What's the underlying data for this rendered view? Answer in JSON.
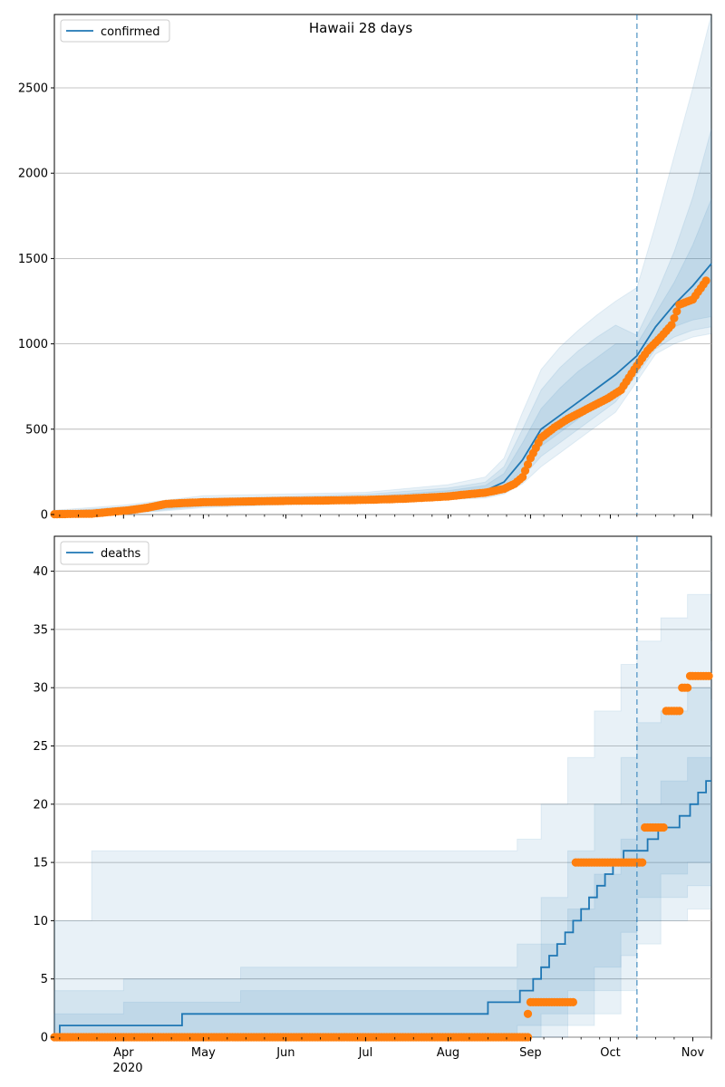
{
  "figure": {
    "title": "Hawaii 28 days"
  },
  "colors": {
    "model_line": "#1f77b4",
    "band": "#1f77b4",
    "observed": "#ff7f0e",
    "grid": "#b0b0b0",
    "vline": "#1f77b4"
  },
  "chart_data": [
    {
      "type": "line",
      "name": "confirmed-panel",
      "x_range": [
        "2020-03-06",
        "2020-11-08"
      ],
      "ylim": [
        0,
        2930
      ],
      "yticks": [
        0,
        500,
        1000,
        1500,
        2000,
        2500
      ],
      "grid": "horizontal",
      "legend_placement": "upper-left",
      "legend": [
        "confirmed"
      ],
      "forecast_start": "2020-10-11",
      "model": {
        "name": "confirmed",
        "x": [
          "2020-03-06",
          "2020-04-01",
          "2020-05-01",
          "2020-06-01",
          "2020-07-01",
          "2020-08-01",
          "2020-08-15",
          "2020-08-22",
          "2020-08-29",
          "2020-09-05",
          "2020-09-12",
          "2020-09-19",
          "2020-09-26",
          "2020-10-03",
          "2020-10-11",
          "2020-10-18",
          "2020-10-25",
          "2020-11-01",
          "2020-11-08"
        ],
        "median": [
          3,
          20,
          70,
          80,
          88,
          118,
          140,
          190,
          320,
          500,
          580,
          660,
          740,
          820,
          930,
          1100,
          1230,
          1340,
          1470
        ],
        "bands": [
          {
            "lo": [
              0,
              10,
              55,
              70,
              78,
              105,
              120,
              160,
              260,
              400,
              480,
              560,
              640,
              720,
              850,
              1020,
              1100,
              1140,
              1160
            ],
            "hi": [
              10,
              35,
              85,
              95,
              105,
              140,
              170,
              240,
              420,
              620,
              740,
              840,
              920,
              1000,
              1000,
              1180,
              1360,
              1580,
              1850
            ]
          },
          {
            "lo": [
              0,
              5,
              48,
              64,
              72,
              96,
              108,
              140,
              220,
              340,
              420,
              500,
              580,
              660,
              820,
              970,
              1040,
              1080,
              1100
            ],
            "hi": [
              18,
              45,
              95,
              105,
              118,
              155,
              190,
              280,
              500,
              730,
              860,
              960,
              1040,
              1110,
              1050,
              1280,
              1540,
              1860,
              2260
            ]
          },
          {
            "lo": [
              0,
              2,
              40,
              58,
              66,
              88,
              96,
              120,
              180,
              280,
              360,
              440,
              520,
              600,
              780,
              940,
              1000,
              1040,
              1060
            ],
            "hi": [
              25,
              55,
              110,
              120,
              130,
              175,
              220,
              330,
              600,
              850,
              980,
              1080,
              1170,
              1250,
              1330,
              1700,
              2100,
              2500,
              2930
            ]
          }
        ]
      },
      "observed": {
        "x": [
          "2020-03-06",
          "2020-03-20",
          "2020-03-27",
          "2020-04-03",
          "2020-04-10",
          "2020-04-17",
          "2020-04-24",
          "2020-05-01",
          "2020-05-15",
          "2020-06-01",
          "2020-06-15",
          "2020-07-01",
          "2020-07-15",
          "2020-08-01",
          "2020-08-08",
          "2020-08-15",
          "2020-08-22",
          "2020-08-26",
          "2020-08-29",
          "2020-09-01",
          "2020-09-05",
          "2020-09-10",
          "2020-09-15",
          "2020-09-20",
          "2020-09-25",
          "2020-09-30",
          "2020-10-05",
          "2020-10-10",
          "2020-10-15",
          "2020-10-20",
          "2020-10-24",
          "2020-10-27",
          "2020-11-01",
          "2020-11-06"
        ],
        "y": [
          2,
          5,
          15,
          25,
          40,
          62,
          68,
          72,
          76,
          80,
          82,
          86,
          92,
          106,
          118,
          128,
          150,
          180,
          220,
          330,
          450,
          510,
          560,
          600,
          640,
          680,
          730,
          850,
          960,
          1040,
          1110,
          1230,
          1260,
          1370
        ]
      }
    },
    {
      "type": "line",
      "name": "deaths-panel",
      "x_range": [
        "2020-03-06",
        "2020-11-08"
      ],
      "ylim": [
        0,
        43
      ],
      "yticks": [
        0,
        5,
        10,
        15,
        20,
        25,
        30,
        35,
        40
      ],
      "xtick_labels": [
        "Apr",
        "May",
        "Jun",
        "Jul",
        "Aug",
        "Sep",
        "Oct",
        "Nov"
      ],
      "xtick_dates": [
        "2020-04-01",
        "2020-05-01",
        "2020-06-01",
        "2020-07-01",
        "2020-08-01",
        "2020-09-01",
        "2020-10-01",
        "2020-11-01"
      ],
      "year_label": "2020",
      "grid": "horizontal",
      "legend_placement": "upper-left",
      "legend": [
        "deaths"
      ],
      "forecast_start": "2020-10-11",
      "model": {
        "name": "deaths",
        "x": [
          "2020-03-06",
          "2020-03-08",
          "2020-04-22",
          "2020-04-23",
          "2020-08-15",
          "2020-08-16",
          "2020-08-27",
          "2020-08-28",
          "2020-09-02",
          "2020-09-05",
          "2020-09-08",
          "2020-09-11",
          "2020-09-14",
          "2020-09-17",
          "2020-09-20",
          "2020-09-23",
          "2020-09-26",
          "2020-09-29",
          "2020-10-02",
          "2020-10-06",
          "2020-10-11",
          "2020-10-15",
          "2020-10-19",
          "2020-10-23",
          "2020-10-27",
          "2020-10-31",
          "2020-11-03",
          "2020-11-06",
          "2020-11-08"
        ],
        "median": [
          0,
          1,
          1,
          2,
          2,
          3,
          3,
          4,
          5,
          6,
          7,
          8,
          9,
          10,
          11,
          12,
          13,
          14,
          15,
          16,
          16,
          17,
          18,
          18,
          19,
          20,
          21,
          22,
          22
        ]
      },
      "bands_stepped": [
        {
          "x": [
            "2020-03-06",
            "2020-04-01",
            "2020-05-15",
            "2020-08-15",
            "2020-08-27",
            "2020-09-05",
            "2020-09-15",
            "2020-09-25",
            "2020-10-05",
            "2020-10-11",
            "2020-10-20",
            "2020-10-30",
            "2020-11-08"
          ],
          "lo": [
            0,
            0,
            0,
            0,
            1,
            2,
            4,
            6,
            9,
            12,
            14,
            15,
            16
          ],
          "hi": [
            2,
            3,
            4,
            4,
            5,
            8,
            11,
            14,
            17,
            20,
            22,
            24,
            29
          ]
        },
        {
          "x": [
            "2020-03-06",
            "2020-04-01",
            "2020-05-15",
            "2020-08-15",
            "2020-08-27",
            "2020-09-05",
            "2020-09-15",
            "2020-09-25",
            "2020-10-05",
            "2020-10-11",
            "2020-10-20",
            "2020-10-30",
            "2020-11-08"
          ],
          "lo": [
            0,
            0,
            0,
            0,
            0,
            1,
            2,
            4,
            7,
            10,
            12,
            13,
            13
          ],
          "hi": [
            4,
            5,
            6,
            6,
            8,
            12,
            16,
            20,
            24,
            27,
            28,
            30,
            34
          ]
        },
        {
          "x": [
            "2020-03-06",
            "2020-03-20",
            "2020-06-15",
            "2020-08-15",
            "2020-08-27",
            "2020-09-05",
            "2020-09-15",
            "2020-09-25",
            "2020-10-05",
            "2020-10-11",
            "2020-10-20",
            "2020-10-30",
            "2020-11-08"
          ],
          "lo": [
            0,
            0,
            0,
            0,
            0,
            0,
            1,
            2,
            4,
            8,
            10,
            11,
            11
          ],
          "hi": [
            10,
            16,
            16,
            16,
            17,
            20,
            24,
            28,
            32,
            34,
            36,
            38,
            43
          ]
        }
      ],
      "observed": {
        "segments": [
          {
            "from": "2020-03-06",
            "to": "2020-08-31",
            "y": 0
          },
          {
            "from": "2020-08-31",
            "to": "2020-08-31",
            "y": 2
          },
          {
            "from": "2020-09-01",
            "to": "2020-09-17",
            "y": 3
          },
          {
            "from": "2020-09-18",
            "to": "2020-10-13",
            "y": 15
          },
          {
            "from": "2020-10-14",
            "to": "2020-10-21",
            "y": 18
          },
          {
            "from": "2020-10-22",
            "to": "2020-10-27",
            "y": 28
          },
          {
            "from": "2020-10-28",
            "to": "2020-10-30",
            "y": 30
          },
          {
            "from": "2020-10-31",
            "to": "2020-11-07",
            "y": 31
          }
        ]
      }
    }
  ]
}
